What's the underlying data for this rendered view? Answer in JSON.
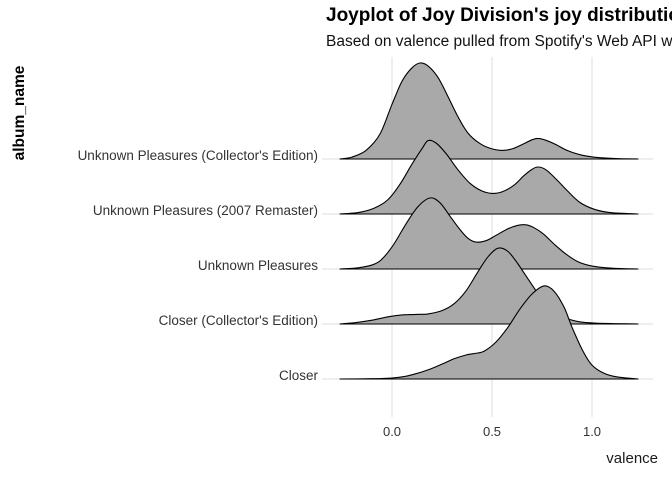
{
  "title": "Joyplot of Joy Division's joy distributions",
  "subtitle": "Based on valence pulled from Spotify's Web API with spotifyr",
  "y_axis_title": "album_name",
  "x_axis_title": "valence",
  "colors": {
    "background": "#FFFFFF",
    "ridge_fill": "#A9A9A9",
    "ridge_stroke": "#000000",
    "gridline": "#E4E4E4",
    "axis_text": "#333333"
  },
  "chart_data": {
    "type": "area",
    "subtype": "ridgeline-joyplot",
    "xlabel": "valence",
    "ylabel": "album_name",
    "x_ticks": [
      0.0,
      0.5,
      1.0
    ],
    "x_tick_labels": [
      "0.0",
      "0.5",
      "1.0"
    ],
    "x_axis_range": [
      -0.35,
      1.3
    ],
    "density_x_range": [
      -0.26,
      1.23
    ],
    "grid": "vertical-major and per-category baselines, white background",
    "legend": "none",
    "note": "densities normalized so tallest peak = 1.0; categories listed top to bottom",
    "series": [
      {
        "name": "Unknown Pleasures (Collector's Edition)",
        "points": [
          [
            -0.26,
            0
          ],
          [
            -0.2,
            0.02
          ],
          [
            -0.13,
            0.09
          ],
          [
            -0.06,
            0.26
          ],
          [
            0.0,
            0.57
          ],
          [
            0.05,
            0.81
          ],
          [
            0.1,
            0.95
          ],
          [
            0.14,
            1.0
          ],
          [
            0.18,
            0.97
          ],
          [
            0.23,
            0.85
          ],
          [
            0.28,
            0.65
          ],
          [
            0.33,
            0.44
          ],
          [
            0.38,
            0.27
          ],
          [
            0.44,
            0.16
          ],
          [
            0.5,
            0.105
          ],
          [
            0.55,
            0.09
          ],
          [
            0.6,
            0.105
          ],
          [
            0.65,
            0.15
          ],
          [
            0.7,
            0.2
          ],
          [
            0.73,
            0.215
          ],
          [
            0.77,
            0.195
          ],
          [
            0.82,
            0.15
          ],
          [
            0.88,
            0.085
          ],
          [
            0.95,
            0.04
          ],
          [
            1.03,
            0.015
          ],
          [
            1.12,
            0.005
          ],
          [
            1.23,
            0
          ]
        ]
      },
      {
        "name": "Unknown Pleasures (2007 Remaster)",
        "points": [
          [
            -0.26,
            0
          ],
          [
            -0.17,
            0.015
          ],
          [
            -0.09,
            0.06
          ],
          [
            -0.02,
            0.15
          ],
          [
            0.04,
            0.31
          ],
          [
            0.1,
            0.52
          ],
          [
            0.15,
            0.68
          ],
          [
            0.18,
            0.765
          ],
          [
            0.22,
            0.74
          ],
          [
            0.27,
            0.63
          ],
          [
            0.33,
            0.46
          ],
          [
            0.39,
            0.32
          ],
          [
            0.45,
            0.24
          ],
          [
            0.5,
            0.215
          ],
          [
            0.55,
            0.23
          ],
          [
            0.61,
            0.3
          ],
          [
            0.66,
            0.4
          ],
          [
            0.7,
            0.465
          ],
          [
            0.73,
            0.49
          ],
          [
            0.77,
            0.46
          ],
          [
            0.82,
            0.365
          ],
          [
            0.88,
            0.235
          ],
          [
            0.94,
            0.12
          ],
          [
            1.01,
            0.05
          ],
          [
            1.09,
            0.015
          ],
          [
            1.23,
            0
          ]
        ]
      },
      {
        "name": "Unknown Pleasures",
        "points": [
          [
            -0.26,
            0
          ],
          [
            -0.16,
            0.015
          ],
          [
            -0.07,
            0.07
          ],
          [
            0.0,
            0.23
          ],
          [
            0.07,
            0.47
          ],
          [
            0.13,
            0.65
          ],
          [
            0.19,
            0.74
          ],
          [
            0.24,
            0.69
          ],
          [
            0.29,
            0.55
          ],
          [
            0.34,
            0.41
          ],
          [
            0.38,
            0.32
          ],
          [
            0.42,
            0.28
          ],
          [
            0.47,
            0.295
          ],
          [
            0.52,
            0.35
          ],
          [
            0.58,
            0.42
          ],
          [
            0.63,
            0.455
          ],
          [
            0.67,
            0.46
          ],
          [
            0.71,
            0.43
          ],
          [
            0.76,
            0.36
          ],
          [
            0.81,
            0.26
          ],
          [
            0.87,
            0.155
          ],
          [
            0.93,
            0.075
          ],
          [
            1.0,
            0.03
          ],
          [
            1.1,
            0.008
          ],
          [
            1.23,
            0
          ]
        ]
      },
      {
        "name": "Closer (Collector's Edition)",
        "points": [
          [
            -0.26,
            0
          ],
          [
            -0.18,
            0.015
          ],
          [
            -0.1,
            0.04
          ],
          [
            -0.02,
            0.075
          ],
          [
            0.05,
            0.095
          ],
          [
            0.12,
            0.1
          ],
          [
            0.18,
            0.105
          ],
          [
            0.25,
            0.14
          ],
          [
            0.31,
            0.21
          ],
          [
            0.37,
            0.345
          ],
          [
            0.43,
            0.545
          ],
          [
            0.48,
            0.7
          ],
          [
            0.53,
            0.79
          ],
          [
            0.58,
            0.755
          ],
          [
            0.63,
            0.625
          ],
          [
            0.68,
            0.47
          ],
          [
            0.74,
            0.29
          ],
          [
            0.8,
            0.155
          ],
          [
            0.86,
            0.07
          ],
          [
            0.93,
            0.025
          ],
          [
            1.02,
            0.008
          ],
          [
            1.23,
            0
          ]
        ]
      },
      {
        "name": "Closer",
        "points": [
          [
            -0.26,
            0
          ],
          [
            -0.1,
            0.003
          ],
          [
            0.0,
            0.01
          ],
          [
            0.06,
            0.025
          ],
          [
            0.12,
            0.055
          ],
          [
            0.18,
            0.095
          ],
          [
            0.25,
            0.155
          ],
          [
            0.31,
            0.21
          ],
          [
            0.37,
            0.25
          ],
          [
            0.41,
            0.265
          ],
          [
            0.46,
            0.29
          ],
          [
            0.52,
            0.385
          ],
          [
            0.58,
            0.54
          ],
          [
            0.64,
            0.73
          ],
          [
            0.7,
            0.885
          ],
          [
            0.76,
            0.97
          ],
          [
            0.81,
            0.915
          ],
          [
            0.86,
            0.75
          ],
          [
            0.9,
            0.54
          ],
          [
            0.95,
            0.31
          ],
          [
            1.0,
            0.145
          ],
          [
            1.06,
            0.06
          ],
          [
            1.13,
            0.02
          ],
          [
            1.23,
            0
          ]
        ]
      }
    ]
  }
}
